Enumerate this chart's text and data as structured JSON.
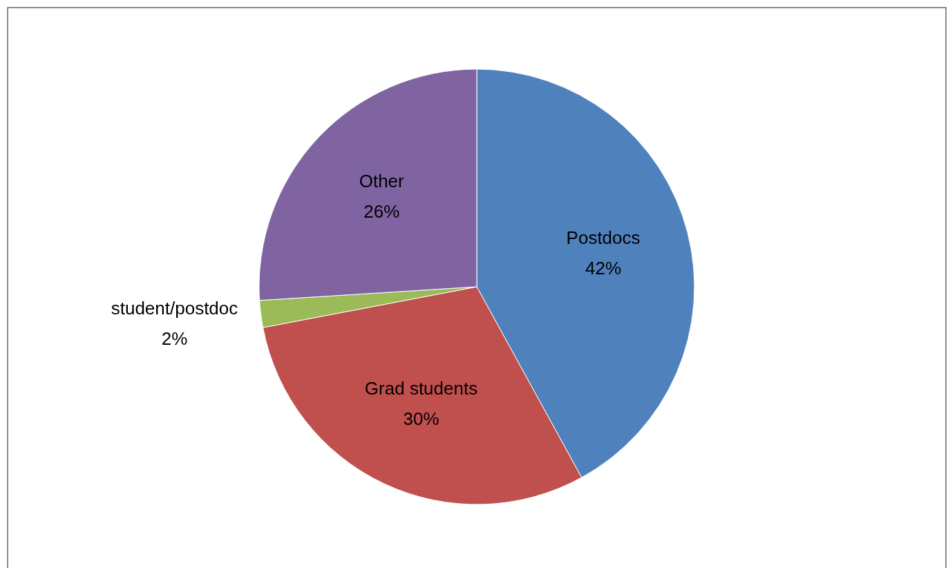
{
  "chart_data": {
    "type": "pie",
    "categories": [
      "Postdocs",
      "Grad students",
      "student/postdoc",
      "Other"
    ],
    "values": [
      42,
      30,
      2,
      26
    ],
    "value_labels": [
      "42%",
      "30%",
      "2%",
      "26%"
    ],
    "colors": [
      "#4f81bd",
      "#c0504d",
      "#9bbb59",
      "#8064a2"
    ],
    "legend": false
  }
}
